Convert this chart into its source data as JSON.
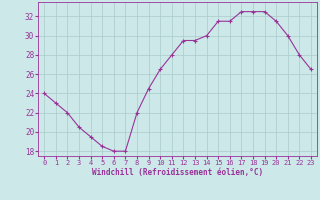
{
  "x": [
    0,
    1,
    2,
    3,
    4,
    5,
    6,
    7,
    8,
    9,
    10,
    11,
    12,
    13,
    14,
    15,
    16,
    17,
    18,
    19,
    20,
    21,
    22,
    23
  ],
  "y": [
    24.0,
    23.0,
    22.0,
    20.5,
    19.5,
    18.5,
    18.0,
    18.0,
    22.0,
    24.5,
    26.5,
    28.0,
    29.5,
    29.5,
    30.0,
    31.5,
    31.5,
    32.5,
    32.5,
    32.5,
    31.5,
    30.0,
    28.0,
    26.5
  ],
  "line_color": "#993399",
  "marker": "+",
  "marker_color": "#993399",
  "bg_color": "#cce8e8",
  "grid_color": "#aacccc",
  "ylabel_ticks": [
    18,
    20,
    22,
    24,
    26,
    28,
    30,
    32
  ],
  "xtick_labels": [
    "0",
    "1",
    "2",
    "3",
    "4",
    "5",
    "6",
    "7",
    "8",
    "9",
    "10",
    "11",
    "12",
    "13",
    "14",
    "15",
    "16",
    "17",
    "18",
    "19",
    "20",
    "21",
    "22",
    "23"
  ],
  "xlabel": "Windchill (Refroidissement éolien,°C)",
  "line_width": 0.8,
  "marker_size": 3,
  "ylim": [
    17.5,
    33.5
  ],
  "xlim": [
    -0.5,
    23.5
  ]
}
